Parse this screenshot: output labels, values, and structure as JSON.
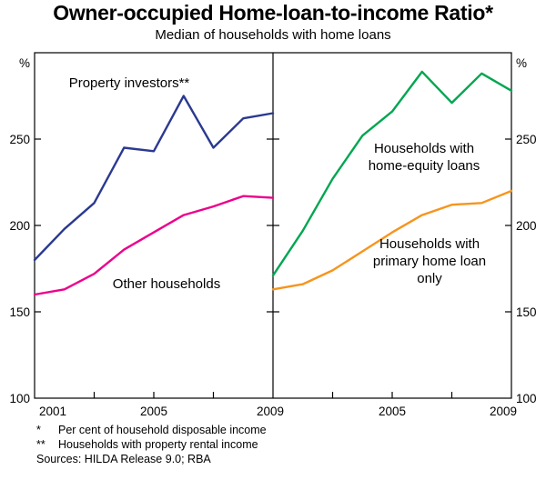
{
  "chart_data": {
    "type": "line",
    "title": "Owner-occupied Home-loan-to-income Ratio*",
    "subtitle": "Median of households with home loans",
    "ylabel": "%",
    "y_range": [
      100,
      300
    ],
    "y_ticks": [
      100,
      150,
      200,
      250
    ],
    "x": [
      2001,
      2002,
      2003,
      2004,
      2005,
      2006,
      2007,
      2008,
      2009
    ],
    "x_range": [
      2001,
      2009
    ],
    "grid": false,
    "legend_position": "inline-labels",
    "panels": [
      {
        "name": "left",
        "series": [
          {
            "id": "property-investors",
            "name": "Property investors**",
            "color": "#2b3990",
            "label_lines": [
              "Property investors**"
            ],
            "values": [
              180,
              198,
              213,
              245,
              243,
              275,
              245,
              262,
              265
            ]
          },
          {
            "id": "other-households",
            "name": "Other households",
            "color": "#ec008c",
            "label_lines": [
              "Other households"
            ],
            "values": [
              160,
              163,
              172,
              186,
              196,
              206,
              211,
              217,
              216
            ]
          }
        ]
      },
      {
        "name": "right",
        "series": [
          {
            "id": "home-equity-loans",
            "name": "Households with home-equity loans",
            "color": "#00a651",
            "label_lines": [
              "Households with",
              "home-equity loans"
            ],
            "values": [
              171,
              197,
              227,
              252,
              266,
              289,
              271,
              288,
              278
            ]
          },
          {
            "id": "primary-home-loan-only",
            "name": "Households with primary home loan only",
            "color": "#f7941d",
            "label_lines": [
              "Households with",
              "primary home loan",
              "only"
            ],
            "values": [
              163,
              166,
              174,
              185,
              196,
              206,
              212,
              213,
              220
            ]
          }
        ]
      }
    ]
  },
  "axes": {
    "unit": "%",
    "y_tick_labels": [
      "250",
      "200",
      "150"
    ],
    "y_base_label": "100",
    "x_labels_left": [
      "2001",
      "2005",
      "2009"
    ],
    "x_labels_right": [
      "2005",
      "2009"
    ]
  },
  "footnotes": [
    {
      "marker": "*",
      "text": "Per cent of household disposable income"
    },
    {
      "marker": "**",
      "text": "Households with property rental income"
    }
  ],
  "sources": "Sources: HILDA Release 9.0; RBA"
}
